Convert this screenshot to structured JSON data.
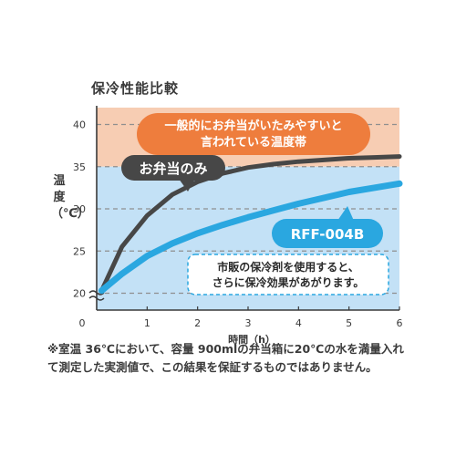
{
  "chart_data": {
    "type": "line",
    "title": "保冷性能比較",
    "xlabel": "時間（h）",
    "ylabel": "温度（℃）",
    "xlim": [
      0,
      6
    ],
    "ylim": [
      18,
      42
    ],
    "x_ticks": [
      "0",
      "1",
      "2",
      "3",
      "4",
      "5",
      "6"
    ],
    "y_ticks": [
      "20",
      "25",
      "30",
      "35",
      "40"
    ],
    "y_tick_values": [
      20,
      25,
      30,
      35,
      40
    ],
    "grid": true,
    "bands": [
      {
        "from": 35,
        "to": 42,
        "color": "#f7cdb3"
      },
      {
        "from": 18,
        "to": 35,
        "color": "#c3e1f6"
      }
    ],
    "series": [
      {
        "name": "お弁当のみ",
        "color": "#474747",
        "x": [
          0.1,
          0.5,
          1,
          1.5,
          2,
          2.5,
          3,
          3.5,
          4,
          4.5,
          5,
          5.5,
          6
        ],
        "y": [
          20.3,
          25.5,
          29.2,
          31.7,
          33.2,
          34.2,
          34.9,
          35.3,
          35.6,
          35.8,
          36.0,
          36.1,
          36.2
        ]
      },
      {
        "name": "RFF-004B",
        "color": "#2aa7e0",
        "x": [
          0.1,
          0.5,
          1,
          1.5,
          2,
          2.5,
          3,
          3.5,
          4,
          4.5,
          5,
          5.5,
          6
        ],
        "y": [
          20.3,
          22.3,
          24.4,
          25.9,
          27.1,
          28.1,
          29.0,
          29.8,
          30.6,
          31.3,
          32.0,
          32.5,
          33.0
        ]
      }
    ],
    "annotations": {
      "danger_zone": [
        "一般的にお弁当がいたみやすいと",
        "言われている温度帯"
      ],
      "effect": [
        "市販の保冷剤を使用すると、",
        "さらに保冷効果があがります。"
      ]
    },
    "colors": {
      "orange_bubble": "#ee7d3d",
      "dark_bubble": "#474747",
      "blue_bubble": "#2aa7e0",
      "axis": "#3a3a3a",
      "grid": "#8f8f8f"
    }
  },
  "footnote": [
    "※室温 36℃において、容量 900mlの弁当箱に20℃の水を満量入れ",
    "て測定した実測値で、この結果を保証するものではありません。"
  ]
}
